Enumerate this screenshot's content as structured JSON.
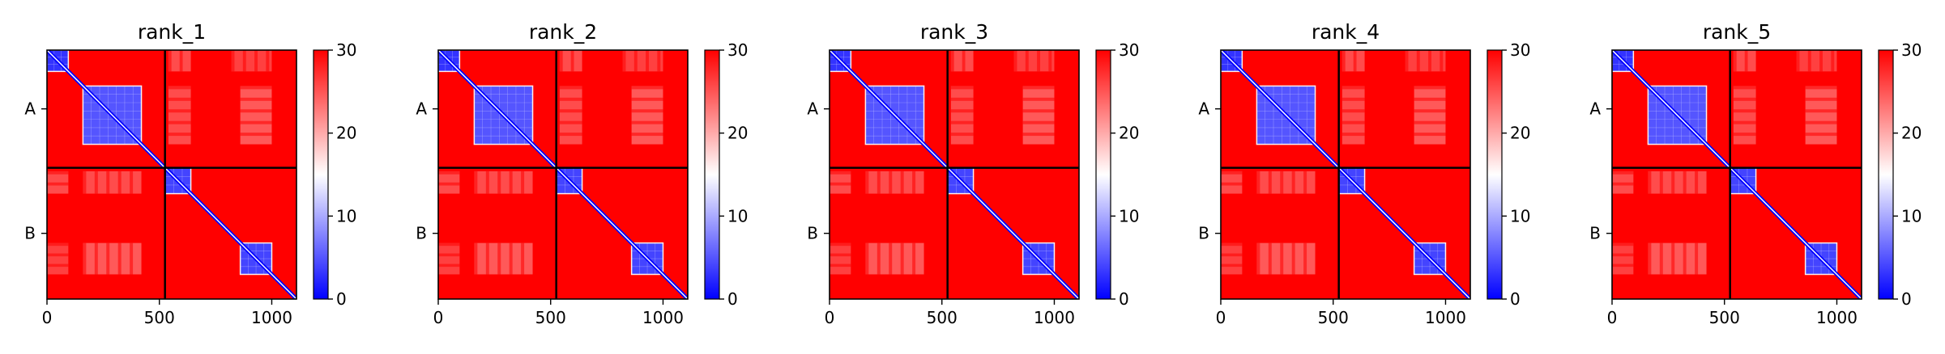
{
  "chart_data": {
    "type": "heatmap",
    "colormap": {
      "low": "#0000ff",
      "mid": "#ffffff",
      "high": "#ff0000"
    },
    "color_range": [
      0,
      30
    ],
    "colorbar_ticks": [
      "0",
      "10",
      "20",
      "30"
    ],
    "x_ticks": [
      {
        "value": 0,
        "label": "0"
      },
      {
        "value": 500,
        "label": "500"
      },
      {
        "value": 1000,
        "label": "1000"
      }
    ],
    "x_range": [
      0,
      1110
    ],
    "y_range": [
      0,
      1110
    ],
    "chain_boundary": 525,
    "chains": [
      {
        "label": "A",
        "center": 262
      },
      {
        "label": "B",
        "center": 817
      }
    ],
    "panels": [
      {
        "title": "rank_1"
      },
      {
        "title": "rank_2"
      },
      {
        "title": "rank_3"
      },
      {
        "title": "rank_4"
      },
      {
        "title": "rank_5"
      }
    ],
    "low_error_blocks": [
      {
        "from": 0,
        "to": 95,
        "value": 3
      },
      {
        "from": 160,
        "to": 420,
        "value": 5
      },
      {
        "from": 525,
        "to": 640,
        "value": 4
      },
      {
        "from": 860,
        "to": 1000,
        "value": 4
      }
    ],
    "moderate_error_bands": [
      {
        "rows": [
          0,
          95
        ],
        "cols": [
          540,
          640
        ],
        "value": 24
      },
      {
        "rows": [
          0,
          95
        ],
        "cols": [
          820,
          1000
        ],
        "value": 25
      },
      {
        "rows": [
          160,
          420
        ],
        "cols": [
          540,
          640
        ],
        "value": 24
      },
      {
        "rows": [
          160,
          420
        ],
        "cols": [
          860,
          1000
        ],
        "value": 23
      },
      {
        "rows": [
          540,
          640
        ],
        "cols": [
          0,
          95
        ],
        "value": 24
      },
      {
        "rows": [
          540,
          640
        ],
        "cols": [
          160,
          420
        ],
        "value": 24
      },
      {
        "rows": [
          860,
          1000
        ],
        "cols": [
          0,
          95
        ],
        "value": 25
      },
      {
        "rows": [
          860,
          1000
        ],
        "cols": [
          160,
          420
        ],
        "value": 23
      }
    ],
    "background_value": 30
  }
}
